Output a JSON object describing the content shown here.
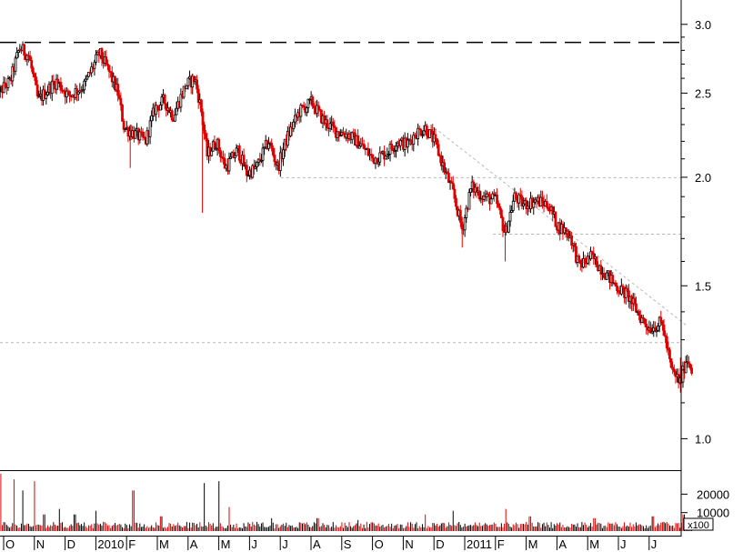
{
  "chart_data": {
    "type": "candlestick",
    "price_axis": {
      "scale": "log",
      "ylim": [
        0.92,
        3.2
      ],
      "ticks": [
        {
          "value": 3.0,
          "label": "3.0"
        },
        {
          "value": 2.5,
          "label": "2.5"
        },
        {
          "value": 2.0,
          "label": "2.0"
        },
        {
          "value": 1.5,
          "label": "1.5"
        },
        {
          "value": 1.0,
          "label": "1.0"
        }
      ]
    },
    "volume_axis": {
      "ticks": [
        {
          "value": 20000,
          "label": "20000"
        },
        {
          "value": 10000,
          "label": "10000"
        }
      ],
      "unit_label": "x100",
      "ylim": [
        0,
        32000
      ]
    },
    "x_axis": {
      "labels": [
        "O",
        "N",
        "D",
        "2010",
        "F",
        "M",
        "A",
        "M",
        "J",
        "J",
        "A",
        "S",
        "O",
        "N",
        "D",
        "2011",
        "F",
        "M",
        "A",
        "M",
        "J",
        "J"
      ]
    },
    "overlays": {
      "dashed_resistance": 2.86,
      "support_lines": [
        {
          "value": 1.998,
          "from_month": 8.9
        },
        {
          "value": 1.72,
          "from_month": 15.8
        },
        {
          "value": 1.29,
          "from_month": -0.4
        }
      ],
      "trendline_from": {
        "month": 13.9,
        "value": 2.28
      },
      "trendline_to": {
        "month": 22.1,
        "value": 1.35
      }
    },
    "price_path": [
      [
        -0.4,
        2.48
      ],
      [
        0.1,
        2.58
      ],
      [
        0.4,
        2.82
      ],
      [
        0.7,
        2.76
      ],
      [
        1.0,
        2.45
      ],
      [
        1.3,
        2.52
      ],
      [
        1.6,
        2.58
      ],
      [
        2.0,
        2.48
      ],
      [
        2.5,
        2.55
      ],
      [
        3.0,
        2.78
      ],
      [
        3.3,
        2.65
      ],
      [
        3.6,
        2.5
      ],
      [
        3.8,
        2.28
      ],
      [
        4.1,
        2.25
      ],
      [
        4.5,
        2.2
      ],
      [
        4.8,
        2.4
      ],
      [
        5.1,
        2.45
      ],
      [
        5.4,
        2.35
      ],
      [
        5.8,
        2.55
      ],
      [
        6.1,
        2.6
      ],
      [
        6.3,
        2.4
      ],
      [
        6.5,
        2.12
      ],
      [
        6.8,
        2.2
      ],
      [
        7.1,
        2.05
      ],
      [
        7.5,
        2.15
      ],
      [
        7.8,
        2.02
      ],
      [
        8.1,
        2.05
      ],
      [
        8.5,
        2.2
      ],
      [
        8.8,
        2.05
      ],
      [
        9.1,
        2.22
      ],
      [
        9.5,
        2.38
      ],
      [
        9.9,
        2.44
      ],
      [
        10.3,
        2.32
      ],
      [
        10.7,
        2.26
      ],
      [
        11.1,
        2.24
      ],
      [
        11.5,
        2.18
      ],
      [
        11.9,
        2.1
      ],
      [
        12.3,
        2.13
      ],
      [
        12.7,
        2.2
      ],
      [
        13.0,
        2.18
      ],
      [
        13.3,
        2.25
      ],
      [
        13.6,
        2.28
      ],
      [
        13.9,
        2.2
      ],
      [
        14.2,
        2.05
      ],
      [
        14.5,
        1.92
      ],
      [
        14.8,
        1.74
      ],
      [
        15.1,
        1.95
      ],
      [
        15.5,
        1.9
      ],
      [
        15.9,
        1.88
      ],
      [
        16.2,
        1.72
      ],
      [
        16.5,
        1.9
      ],
      [
        16.8,
        1.86
      ],
      [
        17.2,
        1.88
      ],
      [
        17.6,
        1.86
      ],
      [
        17.9,
        1.76
      ],
      [
        18.3,
        1.72
      ],
      [
        18.6,
        1.58
      ],
      [
        19.0,
        1.62
      ],
      [
        19.4,
        1.56
      ],
      [
        19.8,
        1.5
      ],
      [
        20.2,
        1.46
      ],
      [
        20.6,
        1.38
      ],
      [
        20.9,
        1.34
      ],
      [
        21.3,
        1.36
      ],
      [
        21.6,
        1.2
      ],
      [
        21.9,
        1.16
      ],
      [
        22.1,
        1.24
      ],
      [
        22.3,
        1.2
      ]
    ],
    "volume_spikes": [
      {
        "month": -0.2,
        "value": 31000
      },
      {
        "month": 0.2,
        "value": 28000
      },
      {
        "month": 0.5,
        "value": 22000
      },
      {
        "month": 0.9,
        "value": 27000
      },
      {
        "month": 1.2,
        "value": 9000
      },
      {
        "month": 1.7,
        "value": 12000
      },
      {
        "month": 2.2,
        "value": 9000
      },
      {
        "month": 2.9,
        "value": 11000
      },
      {
        "month": 4.1,
        "value": 22000
      },
      {
        "month": 5.0,
        "value": 8000
      },
      {
        "month": 6.4,
        "value": 26000
      },
      {
        "month": 6.9,
        "value": 27000
      },
      {
        "month": 7.2,
        "value": 13000
      },
      {
        "month": 8.6,
        "value": 7000
      },
      {
        "month": 10.1,
        "value": 7000
      },
      {
        "month": 11.4,
        "value": 6000
      },
      {
        "month": 13.6,
        "value": 9000
      },
      {
        "month": 14.5,
        "value": 11000
      },
      {
        "month": 16.2,
        "value": 12000
      },
      {
        "month": 17.0,
        "value": 8000
      },
      {
        "month": 19.1,
        "value": 7000
      },
      {
        "month": 21.0,
        "value": 8000
      },
      {
        "month": 22.0,
        "value": 9000
      }
    ]
  }
}
